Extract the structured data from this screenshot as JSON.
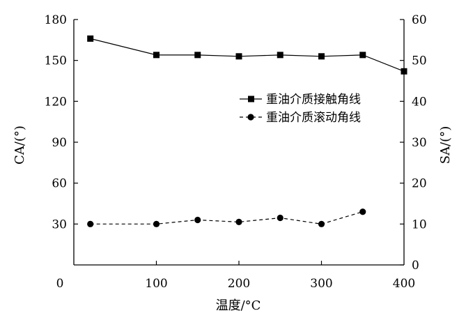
{
  "chart_data": {
    "type": "line",
    "xlabel": "温度/°C",
    "ylabel_left": "CA/(°)",
    "ylabel_right": "SA/(°)",
    "xlim": [
      0,
      400
    ],
    "ylim_left": [
      0,
      180
    ],
    "ylim_right": [
      0,
      60
    ],
    "x_ticks": [
      0,
      100,
      200,
      300,
      400
    ],
    "y_left_ticks": [
      30,
      60,
      90,
      120,
      150,
      180
    ],
    "y_right_ticks": [
      0,
      10,
      20,
      30,
      40,
      50,
      60
    ],
    "grid": false,
    "legend_position": "center-right",
    "series": [
      {
        "name": "重油介质接触角线",
        "axis": "left",
        "marker": "square",
        "line_style": "solid",
        "x": [
          20,
          100,
          150,
          200,
          250,
          300,
          350,
          400
        ],
        "y": [
          166,
          154,
          154,
          153,
          154,
          153,
          154,
          142
        ]
      },
      {
        "name": "重油介质滚动角线",
        "axis": "right",
        "marker": "circle",
        "line_style": "dashed",
        "x": [
          20,
          100,
          150,
          200,
          250,
          300,
          350
        ],
        "y": [
          10,
          10,
          11,
          10.5,
          11.5,
          10,
          13
        ]
      }
    ]
  }
}
